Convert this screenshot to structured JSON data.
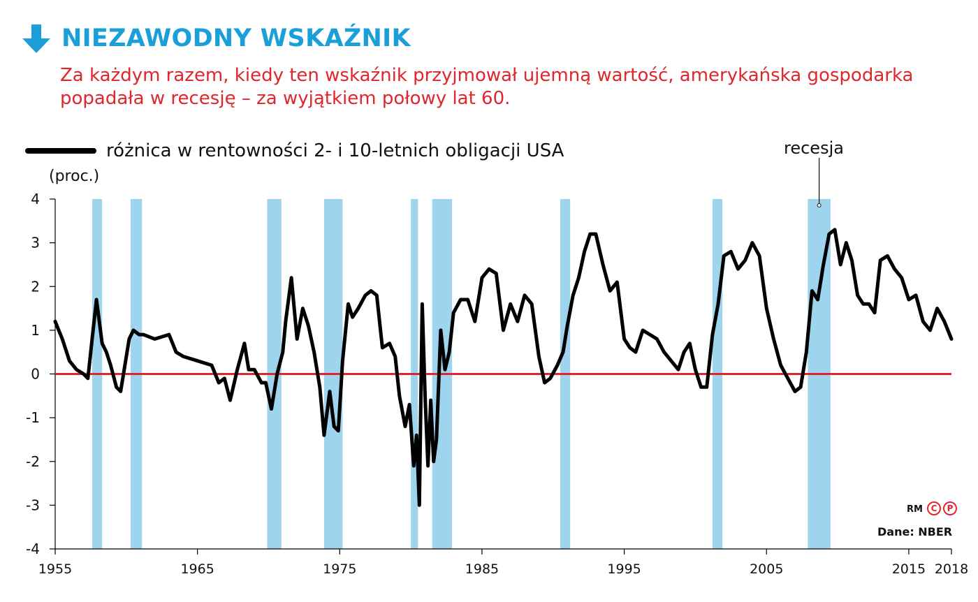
{
  "header": {
    "title": "NIEZAWODNY WSKAŹNIK",
    "subtitle": "Za każdym razem, kiedy ten wskaźnik przyjmował ujemną wartość, amerykańska gospodarka popadała w recesję – za wyjątkiem połowy lat 60."
  },
  "legend": {
    "series_label": "różnica w rentowności 2- i 10-letnich obligacji USA",
    "recession_label": "recesja"
  },
  "footer": {
    "logo_text": "RM",
    "source": "Dane: NBER"
  },
  "colors": {
    "title": "#1b9fd9",
    "subtitle": "#e0262c",
    "recession_band": "#9fd4ef",
    "zero_line": "#e0262c",
    "series_line": "#000000"
  },
  "chart_data": {
    "type": "line",
    "title": "NIEZAWODNY WSKAŹNIK",
    "ylabel": "(proc.)",
    "xlabel": "",
    "xlim": [
      1955,
      2018
    ],
    "ylim": [
      -4,
      4
    ],
    "x_ticks": [
      "1955",
      "1965",
      "1975",
      "1985",
      "1995",
      "2005",
      "2015",
      "2018"
    ],
    "y_ticks": [
      "4",
      "3",
      "2",
      "1",
      "0",
      "-1",
      "-2",
      "-3",
      "-4"
    ],
    "reference_line": 0,
    "series": [
      {
        "name": "różnica w rentowności 2- i 10-letnich obligacji USA",
        "x": [
          1955.0,
          1955.5,
          1956.0,
          1956.5,
          1957.0,
          1957.3,
          1957.6,
          1957.9,
          1958.3,
          1958.6,
          1958.9,
          1959.3,
          1959.6,
          1959.9,
          1960.2,
          1960.5,
          1960.9,
          1961.2,
          1962.0,
          1963.0,
          1963.5,
          1964.0,
          1965.0,
          1966.0,
          1966.5,
          1966.9,
          1967.3,
          1967.8,
          1968.3,
          1968.6,
          1969.0,
          1969.5,
          1969.8,
          1970.2,
          1970.6,
          1971.0,
          1971.2,
          1971.6,
          1972.0,
          1972.4,
          1972.8,
          1973.2,
          1973.6,
          1973.9,
          1974.3,
          1974.6,
          1974.9,
          1975.2,
          1975.6,
          1975.9,
          1976.3,
          1976.8,
          1977.2,
          1977.6,
          1978.0,
          1978.5,
          1978.9,
          1979.2,
          1979.6,
          1979.9,
          1980.2,
          1980.4,
          1980.6,
          1980.8,
          1981.0,
          1981.2,
          1981.4,
          1981.6,
          1981.8,
          1982.1,
          1982.4,
          1982.7,
          1983.0,
          1983.5,
          1984.0,
          1984.5,
          1985.0,
          1985.5,
          1986.0,
          1986.5,
          1987.0,
          1987.5,
          1988.0,
          1988.5,
          1989.0,
          1989.4,
          1989.8,
          1990.3,
          1990.7,
          1991.0,
          1991.4,
          1991.8,
          1992.2,
          1992.6,
          1993.0,
          1993.5,
          1994.0,
          1994.5,
          1995.0,
          1995.4,
          1995.8,
          1996.3,
          1996.8,
          1997.3,
          1997.8,
          1998.3,
          1998.8,
          1999.2,
          1999.6,
          2000.0,
          2000.4,
          2000.8,
          2001.2,
          2001.6,
          2002.0,
          2002.5,
          2003.0,
          2003.5,
          2004.0,
          2004.5,
          2005.0,
          2005.5,
          2006.0,
          2006.5,
          2007.0,
          2007.4,
          2007.8,
          2008.2,
          2008.6,
          2009.0,
          2009.4,
          2009.8,
          2010.2,
          2010.6,
          2011.0,
          2011.4,
          2011.8,
          2012.2,
          2012.6,
          2013.0,
          2013.5,
          2014.0,
          2014.5,
          2015.0,
          2015.5,
          2016.0,
          2016.5,
          2017.0,
          2017.5,
          2018.0
        ],
        "values": [
          1.2,
          0.8,
          0.3,
          0.1,
          0.0,
          -0.1,
          0.8,
          1.7,
          0.7,
          0.5,
          0.2,
          -0.3,
          -0.4,
          0.2,
          0.8,
          1.0,
          0.9,
          0.9,
          0.8,
          0.9,
          0.5,
          0.4,
          0.3,
          0.2,
          -0.2,
          -0.1,
          -0.6,
          0.1,
          0.7,
          0.1,
          0.1,
          -0.2,
          -0.2,
          -0.8,
          0.0,
          0.5,
          1.2,
          2.2,
          0.8,
          1.5,
          1.1,
          0.5,
          -0.3,
          -1.4,
          -0.4,
          -1.2,
          -1.3,
          0.3,
          1.6,
          1.3,
          1.5,
          1.8,
          1.9,
          1.8,
          0.6,
          0.7,
          0.4,
          -0.5,
          -1.2,
          -0.7,
          -2.1,
          -1.4,
          -3.0,
          1.6,
          -0.5,
          -2.1,
          -0.6,
          -2.0,
          -1.5,
          1.0,
          0.1,
          0.5,
          1.4,
          1.7,
          1.7,
          1.2,
          2.2,
          2.4,
          2.3,
          1.0,
          1.6,
          1.2,
          1.8,
          1.6,
          0.4,
          -0.2,
          -0.1,
          0.2,
          0.5,
          1.1,
          1.8,
          2.2,
          2.8,
          3.2,
          3.2,
          2.5,
          1.9,
          2.1,
          0.8,
          0.6,
          0.5,
          1.0,
          0.9,
          0.8,
          0.5,
          0.3,
          0.1,
          0.5,
          0.7,
          0.1,
          -0.3,
          -0.3,
          0.9,
          1.6,
          2.7,
          2.8,
          2.4,
          2.6,
          3.0,
          2.7,
          1.5,
          0.8,
          0.2,
          -0.1,
          -0.4,
          -0.3,
          0.5,
          1.9,
          1.7,
          2.5,
          3.2,
          3.3,
          2.5,
          3.0,
          2.6,
          1.8,
          1.6,
          1.6,
          1.4,
          2.6,
          2.7,
          2.4,
          2.2,
          1.7,
          1.8,
          1.2,
          1.0,
          1.5,
          1.2,
          0.8
        ]
      }
    ],
    "recessions": [
      [
        1957.6,
        1958.3
      ],
      [
        1960.3,
        1961.1
      ],
      [
        1969.9,
        1970.9
      ],
      [
        1973.9,
        1975.2
      ],
      [
        1980.0,
        1980.5
      ],
      [
        1981.5,
        1982.9
      ],
      [
        1990.5,
        1991.2
      ],
      [
        2001.2,
        2001.9
      ],
      [
        2007.9,
        2009.5
      ]
    ]
  }
}
